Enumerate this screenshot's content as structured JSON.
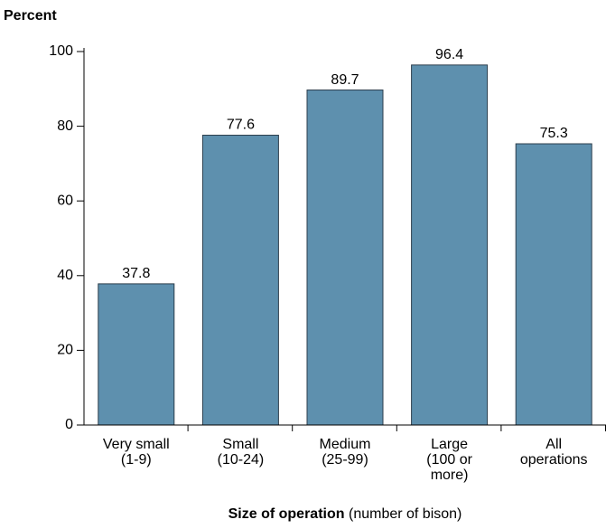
{
  "chart_data": {
    "type": "bar",
    "ylabel": "Percent",
    "xlabel": "Size of operation",
    "xlabel_note": "(number of bison)",
    "categories": [
      "Very small\n(1-9)",
      "Small\n(10-24)",
      "Medium\n(25-99)",
      "Large\n(100 or\nmore)",
      "All\noperations"
    ],
    "values": [
      37.8,
      77.6,
      89.7,
      96.4,
      75.3
    ],
    "color": "#5e90ae",
    "ylim": [
      0,
      100
    ],
    "yticks": [
      0,
      20,
      40,
      60,
      80,
      100
    ],
    "grid": false
  }
}
